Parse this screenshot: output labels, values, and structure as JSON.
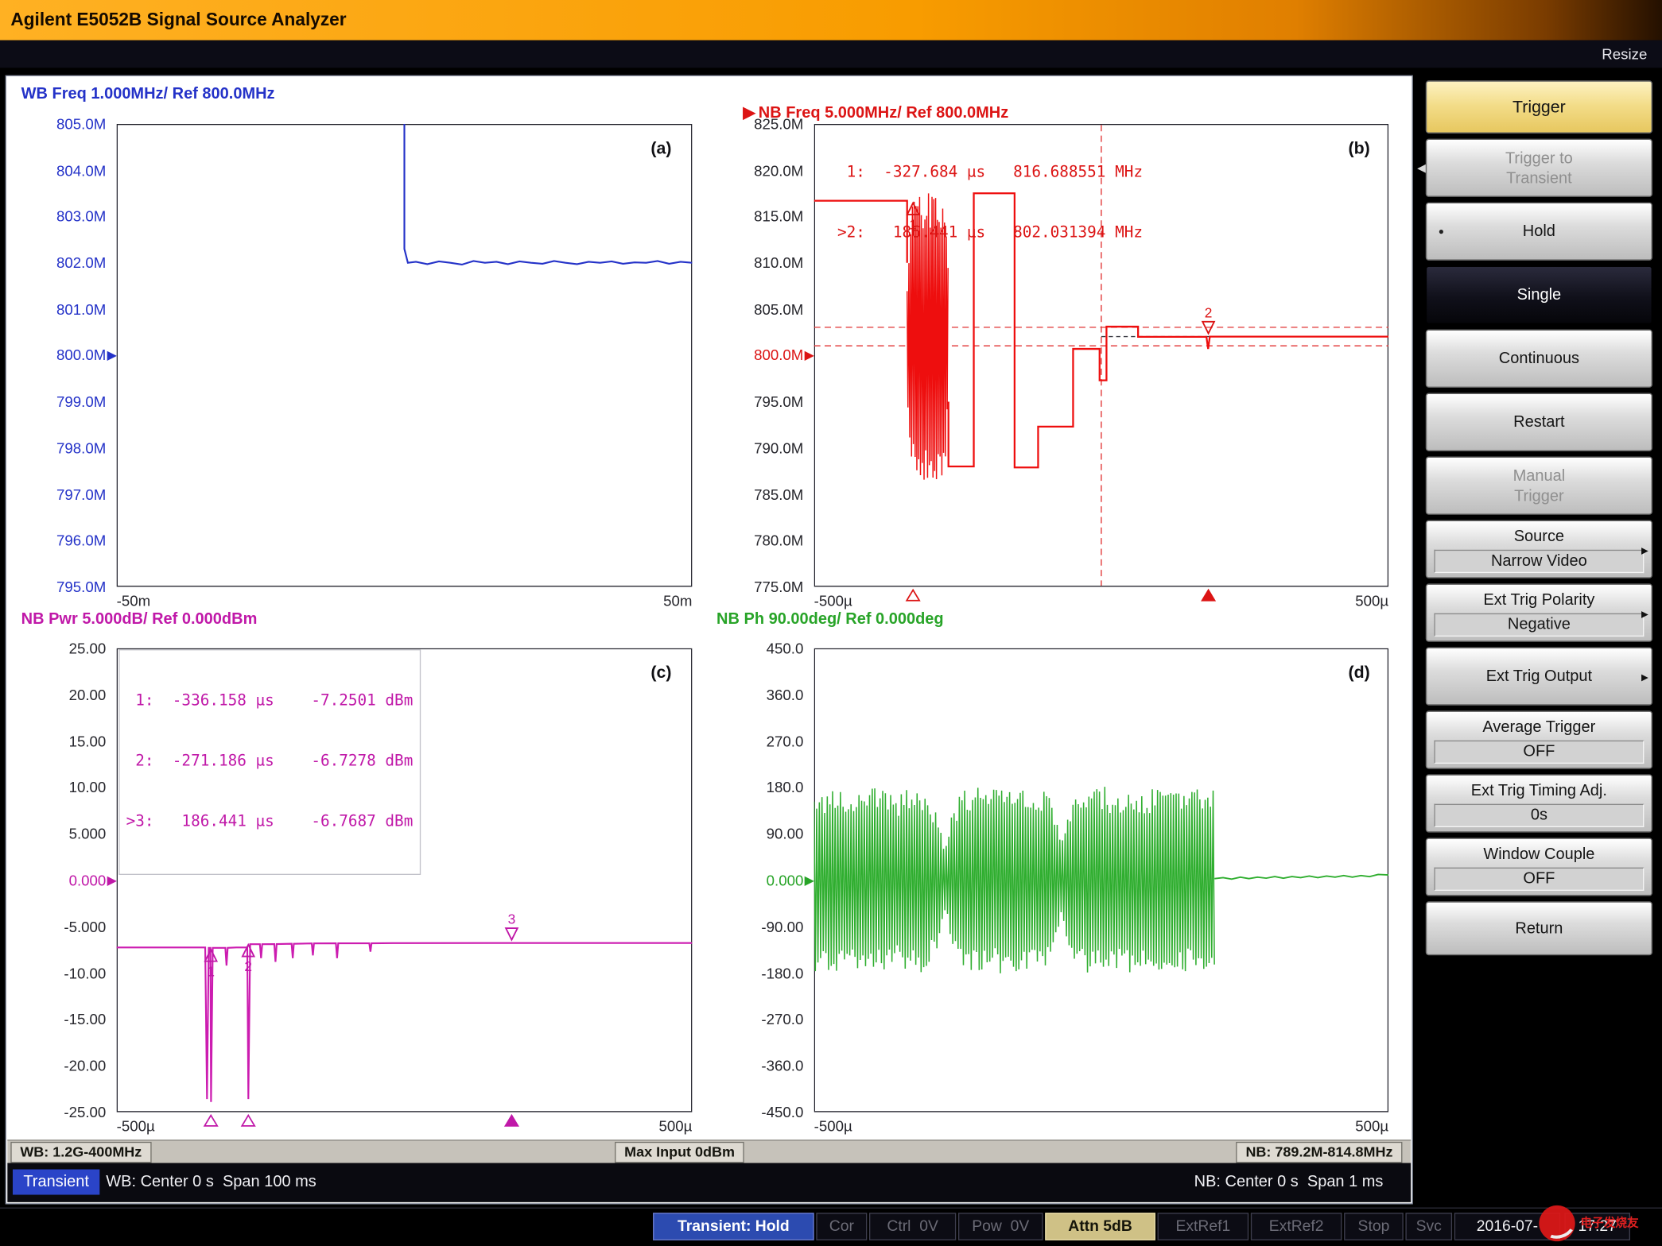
{
  "window": {
    "title": "Agilent E5052B Signal Source Analyzer",
    "resize_label": "Resize"
  },
  "icons": {
    "ref_marker": "▶",
    "active_trace": "▶",
    "submenu_arrow": "▸",
    "back_arrow": "◀",
    "bullet": "●"
  },
  "plots": {
    "a": {
      "header": "WB Freq 1.000MHz/ Ref 800.0MHz",
      "tag": "(a)",
      "yticks": [
        {
          "t": "805.0M"
        },
        {
          "t": "804.0M"
        },
        {
          "t": "803.0M"
        },
        {
          "t": "802.0M"
        },
        {
          "t": "801.0M"
        },
        {
          "t": "800.0M",
          "ref": true
        },
        {
          "t": "799.0M"
        },
        {
          "t": "798.0M"
        },
        {
          "t": "797.0M"
        },
        {
          "t": "796.0M"
        },
        {
          "t": "795.0M"
        }
      ],
      "xticks": [
        "-50m",
        "50m"
      ],
      "draw": {
        "xmin": -50,
        "xmax": 50,
        "ymin": 795,
        "ymax": 805,
        "series": [
          {
            "type": "line",
            "color": "#2432c8",
            "w": 1.6,
            "points": [
              [
                0,
                805.8
              ],
              [
                0,
                802.3
              ],
              [
                0.6,
                802.0
              ],
              [
                2,
                802.02
              ],
              [
                4,
                801.97
              ],
              [
                6,
                802.03
              ],
              [
                8,
                802.0
              ],
              [
                10,
                801.96
              ],
              [
                12,
                802.04
              ],
              [
                14,
                802.0
              ],
              [
                16,
                802.02
              ],
              [
                18,
                801.97
              ],
              [
                20,
                802.03
              ],
              [
                22,
                802.0
              ],
              [
                24,
                801.98
              ],
              [
                26,
                802.04
              ],
              [
                28,
                802.0
              ],
              [
                30,
                801.97
              ],
              [
                32,
                802.02
              ],
              [
                34,
                802.0
              ],
              [
                36,
                802.03
              ],
              [
                38,
                801.98
              ],
              [
                40,
                802.01
              ],
              [
                42,
                802.0
              ],
              [
                44,
                802.04
              ],
              [
                46,
                801.98
              ],
              [
                48,
                802.02
              ],
              [
                50,
                802.0
              ]
            ]
          }
        ]
      }
    },
    "b": {
      "header": "NB Freq 5.000MHz/ Ref 800.0MHz",
      "tag": "(b)",
      "readout": [
        " 1:  -327.684 µs   816.688551 MHz",
        ">2:   186.441 µs   802.031394 MHz"
      ],
      "yticks": [
        {
          "t": "825.0M"
        },
        {
          "t": "820.0M"
        },
        {
          "t": "815.0M"
        },
        {
          "t": "810.0M"
        },
        {
          "t": "805.0M"
        },
        {
          "t": "800.0M",
          "ref": true
        },
        {
          "t": "795.0M"
        },
        {
          "t": "790.0M"
        },
        {
          "t": "785.0M"
        },
        {
          "t": "780.0M"
        },
        {
          "t": "775.0M"
        }
      ],
      "xticks": [
        "-500µ",
        "500µ"
      ],
      "draw": {
        "xmin": -500,
        "xmax": 500,
        "ymin": 775,
        "ymax": 825,
        "mcolor": "#dc1414",
        "series": [
          {
            "type": "hline",
            "v": 803.03,
            "color": "#e03030",
            "dash": "6 4"
          },
          {
            "type": "hline",
            "v": 801.03,
            "color": "#e03030",
            "dash": "6 4"
          },
          {
            "type": "hline",
            "v": 802.03,
            "x0": 0,
            "color": "#383840",
            "dash": "4 3"
          },
          {
            "type": "vline",
            "t": 0,
            "color": "#e03030",
            "dash": "6 4"
          },
          {
            "type": "line",
            "color": "#ee0e0e",
            "w": 1.7,
            "points": [
              [
                -500,
                816.7
              ],
              [
                -338,
                816.7
              ],
              [
                -338,
                810
              ]
            ]
          },
          {
            "type": "zigzag",
            "color": "#ee0e0e",
            "w": 1.1,
            "x0": -338,
            "x1": -266,
            "step": 1.55,
            "center": 802,
            "seed": 11,
            "amp": [
              [
                -338,
                5
              ],
              [
                -333,
                14
              ],
              [
                -328,
                15.6
              ],
              [
                -272,
                15.6
              ],
              [
                -266,
                7
              ]
            ]
          },
          {
            "type": "line",
            "color": "#ee0e0e",
            "w": 1.7,
            "points": [
              [
                -266,
                795
              ],
              [
                -266,
                788
              ],
              [
                -222,
                788
              ],
              [
                -222,
                817.5
              ],
              [
                -151,
                817.5
              ],
              [
                -151,
                787.9
              ],
              [
                -110,
                787.9
              ],
              [
                -110,
                792.3
              ],
              [
                -49,
                792.3
              ],
              [
                -49,
                800.7
              ],
              [
                -3,
                800.7
              ],
              [
                -3,
                797.3
              ],
              [
                9,
                797.3
              ],
              [
                9,
                803.1
              ],
              [
                64,
                803.1
              ],
              [
                64,
                802.0
              ],
              [
                183,
                802.0
              ],
              [
                186,
                800.7
              ],
              [
                189,
                802.03
              ],
              [
                500,
                802.03
              ]
            ]
          }
        ],
        "markers": [
          {
            "t": -327.684,
            "v": 816.689,
            "n": "1",
            "pos": "below"
          },
          {
            "t": 186.441,
            "v": 802.031,
            "n": "2",
            "pos": "above"
          }
        ],
        "axis_markers": [
          {
            "t": -327.684,
            "filled": false
          },
          {
            "t": 186.441,
            "filled": true
          }
        ]
      }
    },
    "c": {
      "header": "NB Pwr 5.000dB/ Ref 0.000dBm",
      "tag": "(c)",
      "readout": [
        " 1:  -336.158 µs    -7.2501 dBm",
        " 2:  -271.186 µs    -6.7278 dBm",
        ">3:   186.441 µs    -6.7687 dBm"
      ],
      "yticks": [
        {
          "t": "25.00"
        },
        {
          "t": "20.00"
        },
        {
          "t": "15.00"
        },
        {
          "t": "10.00"
        },
        {
          "t": "5.000"
        },
        {
          "t": "0.000",
          "ref": true
        },
        {
          "t": "-5.000"
        },
        {
          "t": "-10.00"
        },
        {
          "t": "-15.00"
        },
        {
          "t": "-20.00"
        },
        {
          "t": "-25.00"
        }
      ],
      "xticks": [
        "-500µ",
        "500µ"
      ],
      "draw": {
        "xmin": -500,
        "xmax": 500,
        "ymin": -25,
        "ymax": 25,
        "mcolor": "#c018a8",
        "series": [
          {
            "type": "line",
            "color": "#cc1cb0",
            "w": 1.6,
            "points": [
              [
                -500,
                -7.25
              ],
              [
                -346,
                -7.25
              ],
              [
                -343,
                -23.6
              ],
              [
                -340,
                -7.3
              ],
              [
                -337,
                -7.3
              ],
              [
                -336,
                -23.9
              ],
              [
                -333,
                -7.3
              ],
              [
                -311,
                -7.3
              ],
              [
                -309,
                -9.2
              ],
              [
                -307,
                -7.3
              ],
              [
                -292,
                -7.25
              ],
              [
                -273,
                -7.25
              ],
              [
                -271,
                -23.6
              ],
              [
                -268,
                -6.9
              ],
              [
                -251,
                -6.9
              ],
              [
                -249,
                -8.4
              ],
              [
                -247,
                -6.9
              ],
              [
                -226,
                -6.88
              ],
              [
                -224,
                -8.8
              ],
              [
                -222,
                -6.88
              ],
              [
                -196,
                -6.85
              ],
              [
                -194,
                -8.4
              ],
              [
                -192,
                -6.85
              ],
              [
                -161,
                -6.82
              ],
              [
                -159,
                -8.1
              ],
              [
                -157,
                -6.82
              ],
              [
                -119,
                -6.8
              ],
              [
                -117,
                -8.4
              ],
              [
                -115,
                -6.8
              ],
              [
                -61,
                -6.8
              ],
              [
                -59,
                -7.7
              ],
              [
                -57,
                -6.8
              ],
              [
                -20,
                -6.78
              ],
              [
                150,
                -6.77
              ],
              [
                500,
                -6.77
              ]
            ]
          }
        ],
        "markers": [
          {
            "t": -336.158,
            "v": -7.25,
            "n": "1",
            "pos": "below"
          },
          {
            "t": -271.186,
            "v": -6.73,
            "n": "2",
            "pos": "below"
          },
          {
            "t": 186.441,
            "v": -6.77,
            "n": "3",
            "pos": "above"
          }
        ],
        "axis_markers": [
          {
            "t": -336.158,
            "filled": false
          },
          {
            "t": -271.186,
            "filled": false
          },
          {
            "t": 186.441,
            "filled": true
          }
        ]
      }
    },
    "d": {
      "header": "NB Ph 90.00deg/ Ref 0.000deg",
      "tag": "(d)",
      "yticks": [
        {
          "t": "450.0"
        },
        {
          "t": "360.0"
        },
        {
          "t": "270.0"
        },
        {
          "t": "180.0"
        },
        {
          "t": "90.00"
        },
        {
          "t": "0.000",
          "ref": true
        },
        {
          "t": "-90.00"
        },
        {
          "t": "-180.0"
        },
        {
          "t": "-270.0"
        },
        {
          "t": "-360.0"
        },
        {
          "t": "-450.0"
        }
      ],
      "xticks": [
        "-500µ",
        "500µ"
      ],
      "draw": {
        "xmin": -500,
        "xmax": 500,
        "ymin": -450,
        "ymax": 450,
        "series": [
          {
            "type": "zigzag",
            "color": "#2fae2f",
            "w": 1.15,
            "x0": -500,
            "x1": 197,
            "step": 2.3,
            "center": 0,
            "seed": 5,
            "amp": [
              [
                -500,
                178
              ],
              [
                -420,
                183
              ],
              [
                -360,
                172
              ],
              [
                -310,
                180
              ],
              [
                -285,
                140
              ],
              [
                -272,
                62
              ],
              [
                -258,
                140
              ],
              [
                -238,
                180
              ],
              [
                -150,
                182
              ],
              [
                -95,
                178
              ],
              [
                -70,
                85
              ],
              [
                -52,
                165
              ],
              [
                -20,
                182
              ],
              [
                60,
                180
              ],
              [
                120,
                176
              ],
              [
                197,
                180
              ]
            ]
          },
          {
            "type": "line",
            "color": "#2fae2f",
            "w": 1.4,
            "points": [
              [
                197,
                3
              ],
              [
                212,
                5
              ],
              [
                227,
                2
              ],
              [
                242,
                6
              ],
              [
                257,
                3
              ],
              [
                272,
                6
              ],
              [
                287,
                4
              ],
              [
                302,
                7
              ],
              [
                317,
                4
              ],
              [
                332,
                7
              ],
              [
                347,
                5
              ],
              [
                362,
                8
              ],
              [
                377,
                5
              ],
              [
                392,
                8
              ],
              [
                407,
                6
              ],
              [
                422,
                9
              ],
              [
                437,
                6
              ],
              [
                452,
                9
              ],
              [
                467,
                7
              ],
              [
                482,
                11
              ],
              [
                500,
                10
              ]
            ]
          }
        ]
      }
    }
  },
  "status": {
    "wb_range": "WB: 1.2G-400MHz",
    "max_input": "Max Input 0dBm",
    "nb_range": "NB: 789.2M-814.8MHz",
    "mode": "Transient",
    "wb_sweep": "WB: Center 0 s  Span 100 ms",
    "nb_sweep": "NB: Center 0 s  Span 1 ms"
  },
  "statusbar": {
    "transient_hold": "Transient: Hold",
    "cor": "Cor",
    "ctrl": "Ctrl  0V",
    "pow": "Pow  0V",
    "attn": "Attn 5dB",
    "extref1": "ExtRef1",
    "extref2": "ExtRef2",
    "stop": "Stop",
    "svc": "Svc",
    "date": "2016-07-",
    "time": "17:27"
  },
  "menu": {
    "items": [
      {
        "label": "Trigger",
        "type": "header"
      },
      {
        "label": "Trigger to",
        "label2": "Transient",
        "type": "disabled"
      },
      {
        "label": "Hold",
        "type": "normal",
        "bullet": true
      },
      {
        "label": "Single",
        "type": "selected"
      },
      {
        "label": "Continuous",
        "type": "normal"
      },
      {
        "label": "Restart",
        "type": "normal"
      },
      {
        "label": "Manual",
        "label2": "Trigger",
        "type": "disabled"
      },
      {
        "label": "Source",
        "value": "Narrow Video",
        "type": "normal",
        "arrow": true
      },
      {
        "label": "Ext Trig Polarity",
        "value": "Negative",
        "type": "normal",
        "arrow": true
      },
      {
        "label": "Ext Trig Output",
        "type": "normal",
        "arrow": true
      },
      {
        "label": "Average Trigger",
        "value": "OFF",
        "type": "normal"
      },
      {
        "label": "Ext Trig Timing Adj.",
        "value": "0s",
        "type": "normal"
      },
      {
        "label": "Window Couple",
        "value": "OFF",
        "type": "normal"
      },
      {
        "label": "Return",
        "type": "normal"
      }
    ]
  },
  "watermark": {
    "text": "电子发烧友"
  }
}
